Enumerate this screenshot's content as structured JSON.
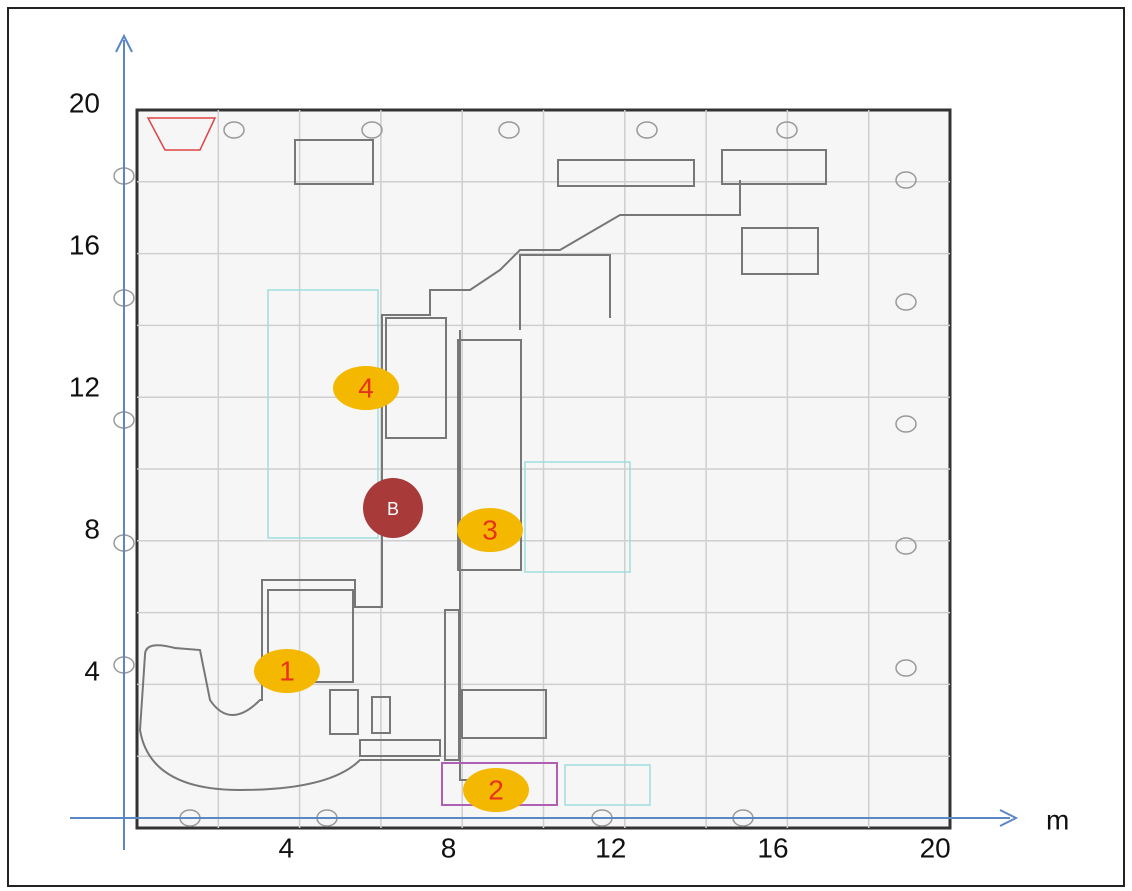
{
  "x_axis": {
    "ticks": [
      4,
      8,
      12,
      16,
      20
    ],
    "unit": "m"
  },
  "y_axis": {
    "ticks": [
      20,
      16,
      12,
      8,
      4
    ]
  },
  "markers": [
    {
      "label": "1"
    },
    {
      "label": "2"
    },
    {
      "label": "3"
    },
    {
      "label": "4"
    },
    {
      "label": "B"
    }
  ]
}
